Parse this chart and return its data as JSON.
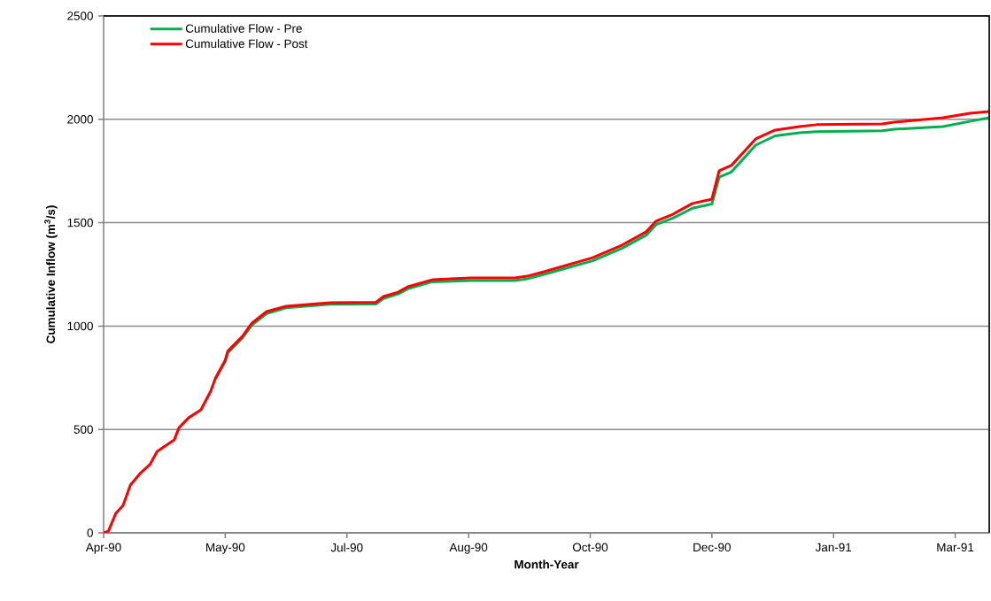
{
  "chart_data": {
    "type": "line",
    "xlabel": "Month-Year",
    "ylabel": "Cumulative Inflow (m$^{3}$/s)",
    "x": [
      "1990-04-01",
      "1990-04-03",
      "1990-04-06",
      "1990-04-09",
      "1990-04-12",
      "1990-04-16",
      "1990-04-20",
      "1990-04-23",
      "1990-04-30",
      "1990-05-02",
      "1990-05-06",
      "1990-05-11",
      "1990-05-15",
      "1990-05-17",
      "1990-05-21",
      "1990-05-22",
      "1990-05-28",
      "1990-06-01",
      "1990-06-07",
      "1990-06-15",
      "1990-07-03",
      "1990-07-22",
      "1990-07-25",
      "1990-07-31",
      "1990-08-04",
      "1990-08-14",
      "1990-08-30",
      "1990-09-17",
      "1990-09-22",
      "1990-09-29",
      "1990-10-09",
      "1990-10-19",
      "1990-10-31",
      "1990-11-10",
      "1990-11-14",
      "1990-11-21",
      "1990-11-29",
      "1990-12-07",
      "1990-12-10",
      "1990-12-15",
      "1990-12-20",
      "1990-12-25",
      "1991-01-02",
      "1991-01-12",
      "1991-01-19",
      "1991-02-15",
      "1991-02-20",
      "1991-03-12",
      "1991-03-23",
      "1991-03-31"
    ],
    "series": [
      {
        "name": "Cumulative Flow - Pre",
        "color": "#00b050",
        "values": [
          null,
          null,
          null,
          null,
          null,
          null,
          null,
          null,
          null,
          null,
          null,
          null,
          null,
          744,
          830,
          870,
          942,
          1006,
          1060,
          1088,
          1105,
          1107,
          1133,
          1155,
          1180,
          1214,
          1220,
          1220,
          1228,
          1250,
          1283,
          1316,
          1376,
          1440,
          1490,
          1522,
          1570,
          1590,
          1720,
          1745,
          1810,
          1875,
          1920,
          1935,
          1940,
          1945,
          1952,
          1965,
          1990,
          2008
        ]
      },
      {
        "name": "Cumulative Flow - Post",
        "color": "#ff0000",
        "values": [
          0,
          9,
          94,
          133,
          231,
          287,
          330,
          394,
          449,
          509,
          557,
          595,
          685,
          749,
          835,
          878,
          950,
          1015,
          1070,
          1096,
          1113,
          1115,
          1143,
          1164,
          1190,
          1224,
          1233,
          1233,
          1241,
          1263,
          1297,
          1331,
          1391,
          1456,
          1507,
          1541,
          1593,
          1614,
          1751,
          1777,
          1841,
          1905,
          1948,
          1965,
          1974,
          1978,
          1986,
          2008,
          2029,
          2038
        ]
      }
    ],
    "xlim": [
      "1990-04-01",
      "1991-03-31"
    ],
    "xticks": [
      {
        "value": "1990-04-01",
        "label": "Apr-90"
      },
      {
        "value": "1990-05-21",
        "label": "May-90"
      },
      {
        "value": "1990-07-10",
        "label": "Jul-90"
      },
      {
        "value": "1990-08-29",
        "label": "Aug-90"
      },
      {
        "value": "1990-10-18",
        "label": "Oct-90"
      },
      {
        "value": "1990-12-07",
        "label": "Dec-90"
      },
      {
        "value": "1991-01-26",
        "label": "Jan-91"
      },
      {
        "value": "1991-03-17",
        "label": "Mar-91"
      }
    ],
    "ylim": [
      0,
      2500
    ],
    "yticks": [
      0,
      500,
      1000,
      1500,
      2000,
      2500
    ],
    "grid": "y",
    "legend": "top left",
    "marker": "none",
    "line_style": "solid"
  }
}
